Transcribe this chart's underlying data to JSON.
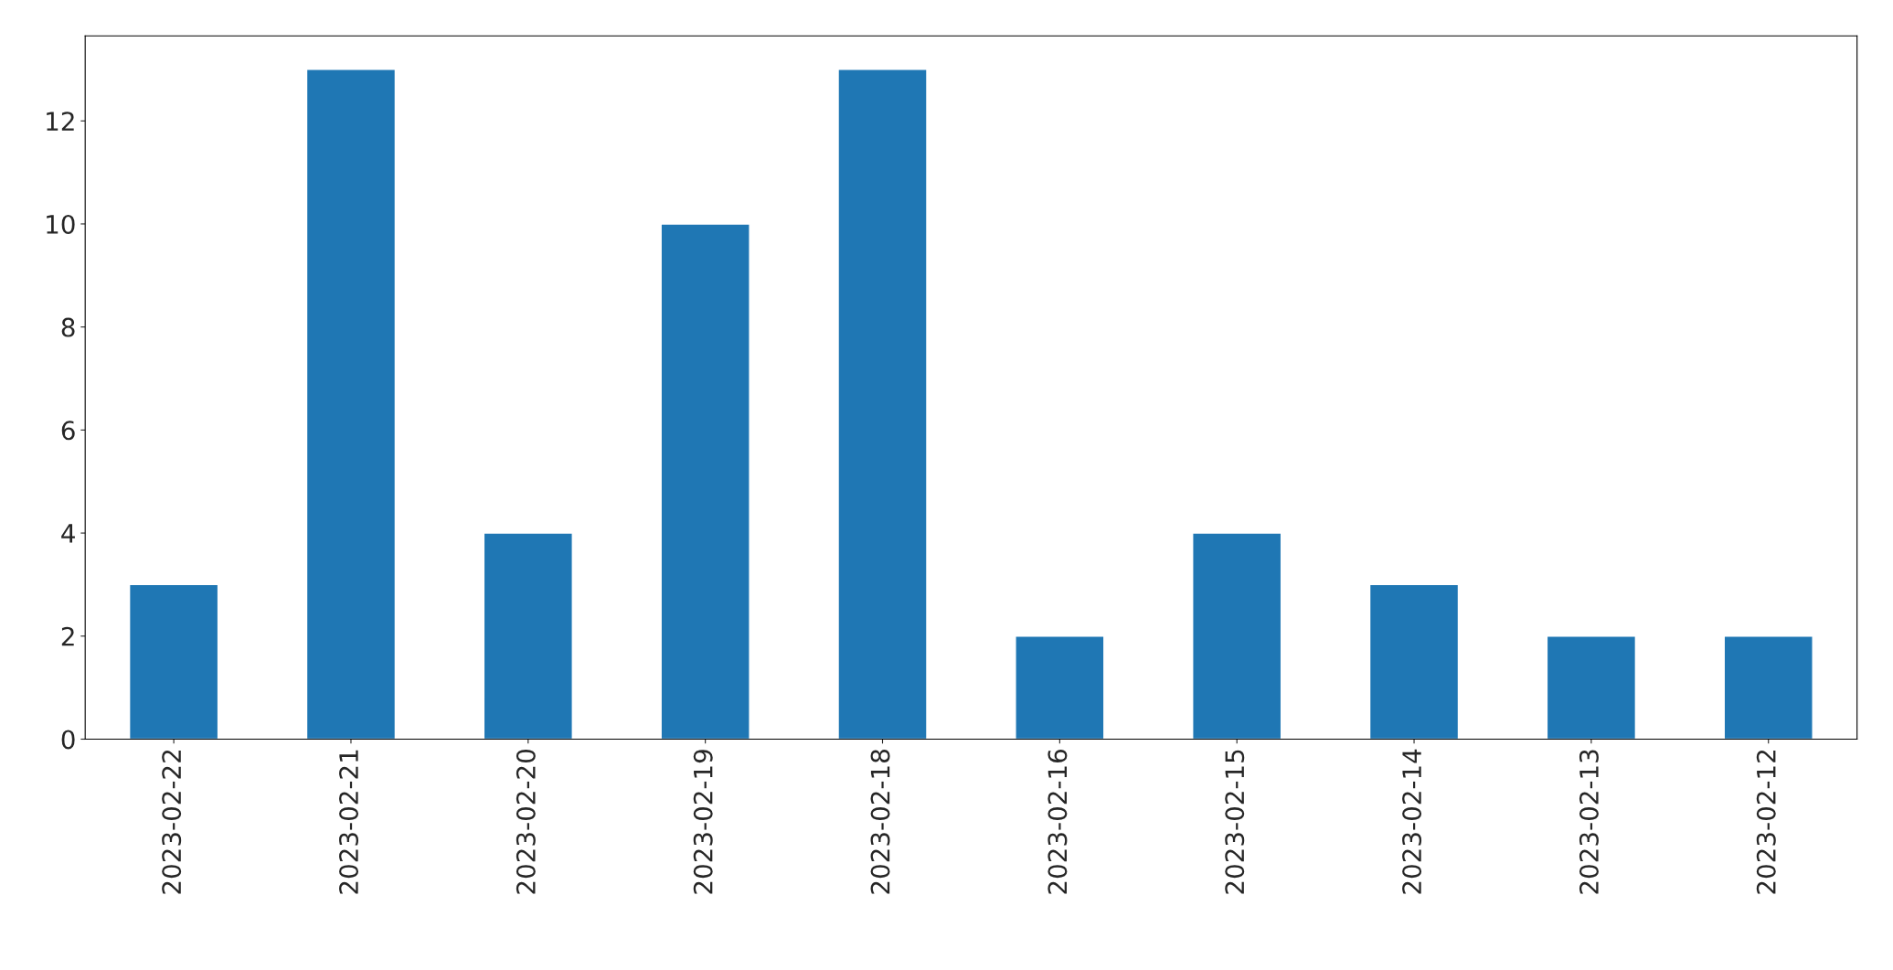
{
  "chart_data": {
    "type": "bar",
    "categories": [
      "2023-02-22",
      "2023-02-21",
      "2023-02-20",
      "2023-02-19",
      "2023-02-18",
      "2023-02-16",
      "2023-02-15",
      "2023-02-14",
      "2023-02-13",
      "2023-02-12"
    ],
    "values": [
      3,
      13,
      4,
      10,
      13,
      2,
      4,
      3,
      2,
      2
    ],
    "color": "#1f77b4",
    "ylim": [
      0,
      13.65
    ],
    "yticks": [
      0,
      2,
      4,
      6,
      8,
      10,
      12
    ],
    "grid": false,
    "legend": false
  }
}
